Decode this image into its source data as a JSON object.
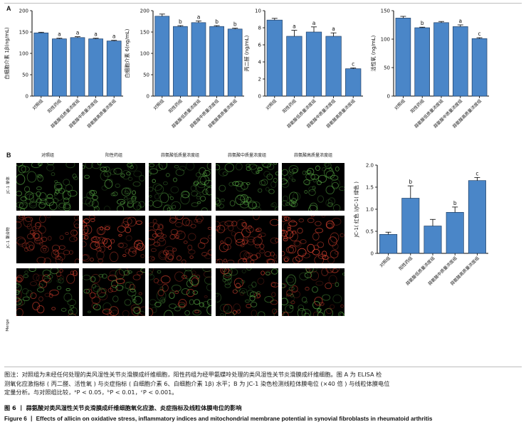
{
  "panel_a_label": "A",
  "panel_b_label": "B",
  "groups": [
    "对照组",
    "阳性药组",
    "蒜氨酸低质量浓度组",
    "蒜氨酸中质量浓度组",
    "蒜氨酸高质量浓度组"
  ],
  "colors": {
    "bar": "#4a86c8",
    "bar_edge": "#1f3f66",
    "green_cell": "#5fb84a",
    "red_cell": "#d8412f"
  },
  "micro_row_labels": [
    "JC-1 单体",
    "JC-1 聚合物",
    "Merge"
  ],
  "chart_data": [
    {
      "type": "bar",
      "ylabel": "白细胞介素 1β(ng/mL)",
      "ylim": [
        0,
        200
      ],
      "yticks": [
        "0",
        "50",
        "100",
        "150",
        "200"
      ],
      "categories": [
        "对照组",
        "阳性药组",
        "蒜氨酸低质量浓度组",
        "蒜氨酸中质量浓度组",
        "蒜氨酸高质量浓度组"
      ],
      "values": [
        148,
        134,
        137,
        134,
        129
      ],
      "errors": [
        1.5,
        1.5,
        2,
        1.5,
        1.5
      ],
      "labels": [
        "",
        "a",
        "a",
        "a",
        "a"
      ]
    },
    {
      "type": "bar",
      "ylabel": "白细胞介素 6(ng/mL)",
      "ylim": [
        0,
        200
      ],
      "yticks": [
        "0",
        "50",
        "100",
        "150",
        "200"
      ],
      "categories": [
        "对照组",
        "阳性药组",
        "蒜氨酸低质量浓度组",
        "蒜氨酸中质量浓度组",
        "蒜氨酸高质量浓度组"
      ],
      "values": [
        187,
        163,
        172,
        163,
        157
      ],
      "errors": [
        5,
        2,
        4,
        2,
        2
      ],
      "labels": [
        "",
        "b",
        "a",
        "b",
        "b"
      ]
    },
    {
      "type": "bar",
      "ylabel": "丙二醛 (ng/mL)",
      "ylim": [
        0,
        10
      ],
      "yticks": [
        "0",
        "2",
        "4",
        "6",
        "8",
        "10"
      ],
      "categories": [
        "对照组",
        "阳性药组",
        "蒜氨酸低质量浓度组",
        "蒜氨酸中质量浓度组",
        "蒜氨酸高质量浓度组"
      ],
      "values": [
        8.9,
        7.0,
        7.5,
        7.0,
        3.2
      ],
      "errors": [
        0.2,
        0.7,
        0.6,
        0.4,
        0.1
      ],
      "labels": [
        "",
        "a",
        "a",
        "a",
        "c"
      ]
    },
    {
      "type": "bar",
      "ylabel": "活性氧 (ng/mL)",
      "ylim": [
        0,
        150
      ],
      "yticks": [
        "0",
        "50",
        "100",
        "150"
      ],
      "categories": [
        "对照组",
        "阳性药组",
        "蒜氨酸低质量浓度组",
        "蒜氨酸中质量浓度组",
        "蒜氨酸高质量浓度组"
      ],
      "values": [
        137,
        120,
        129,
        122,
        101
      ],
      "errors": [
        3,
        1,
        2,
        3,
        1.5
      ],
      "labels": [
        "",
        "b",
        "",
        "a",
        "c"
      ]
    },
    {
      "type": "bar",
      "ylabel": "JC-1( 红色 )/JC-1( 绿色 )",
      "ylim": [
        0,
        2.0
      ],
      "yticks": [
        "0",
        "0.5",
        "1.0",
        "1.5",
        "2.0"
      ],
      "categories": [
        "对照组",
        "阳性药组",
        "蒜氨酸低质量浓度组",
        "蒜氨酸中质量浓度组",
        "蒜氨酸高质量浓度组"
      ],
      "values": [
        0.43,
        1.25,
        0.62,
        0.93,
        1.65
      ],
      "errors": [
        0.05,
        0.28,
        0.15,
        0.12,
        0.07
      ],
      "labels": [
        "",
        "b",
        "",
        "b",
        "c"
      ]
    }
  ],
  "caption": {
    "note_lines": [
      "图注：对照组为未经任何处理的类风湿性关节炎滑膜成纤维细胞，阳性药组为经甲氨蝶呤处理的类风湿性关节炎滑膜成纤维细胞。图 A 为 ELISA 检",
      "测氧化应激指标 ( 丙二醛、活性氧 ) 与炎症指标 ( 白细胞介素 6、白细胞介素 1β) 水平；B 为 JC-1 染色检测线粒体膜电位 (×40 倍 ) 与线粒体膜电位",
      "定量分析。与对照组比较，ᵃP < 0.05，ᵇP < 0.01，ᶜP < 0.001。"
    ],
    "title_cn": "图 6 丨 蒜氨酸对类风湿性关节炎滑膜成纤维细胞氧化应激、炎症指标及线粒体膜电位的影响",
    "title_en": "Figure 6 丨 Effects of allicin on oxidative stress, inflammatory indices and mitochondrial membrane potential in synovial fibroblasts in rheumatoid arthritis"
  }
}
